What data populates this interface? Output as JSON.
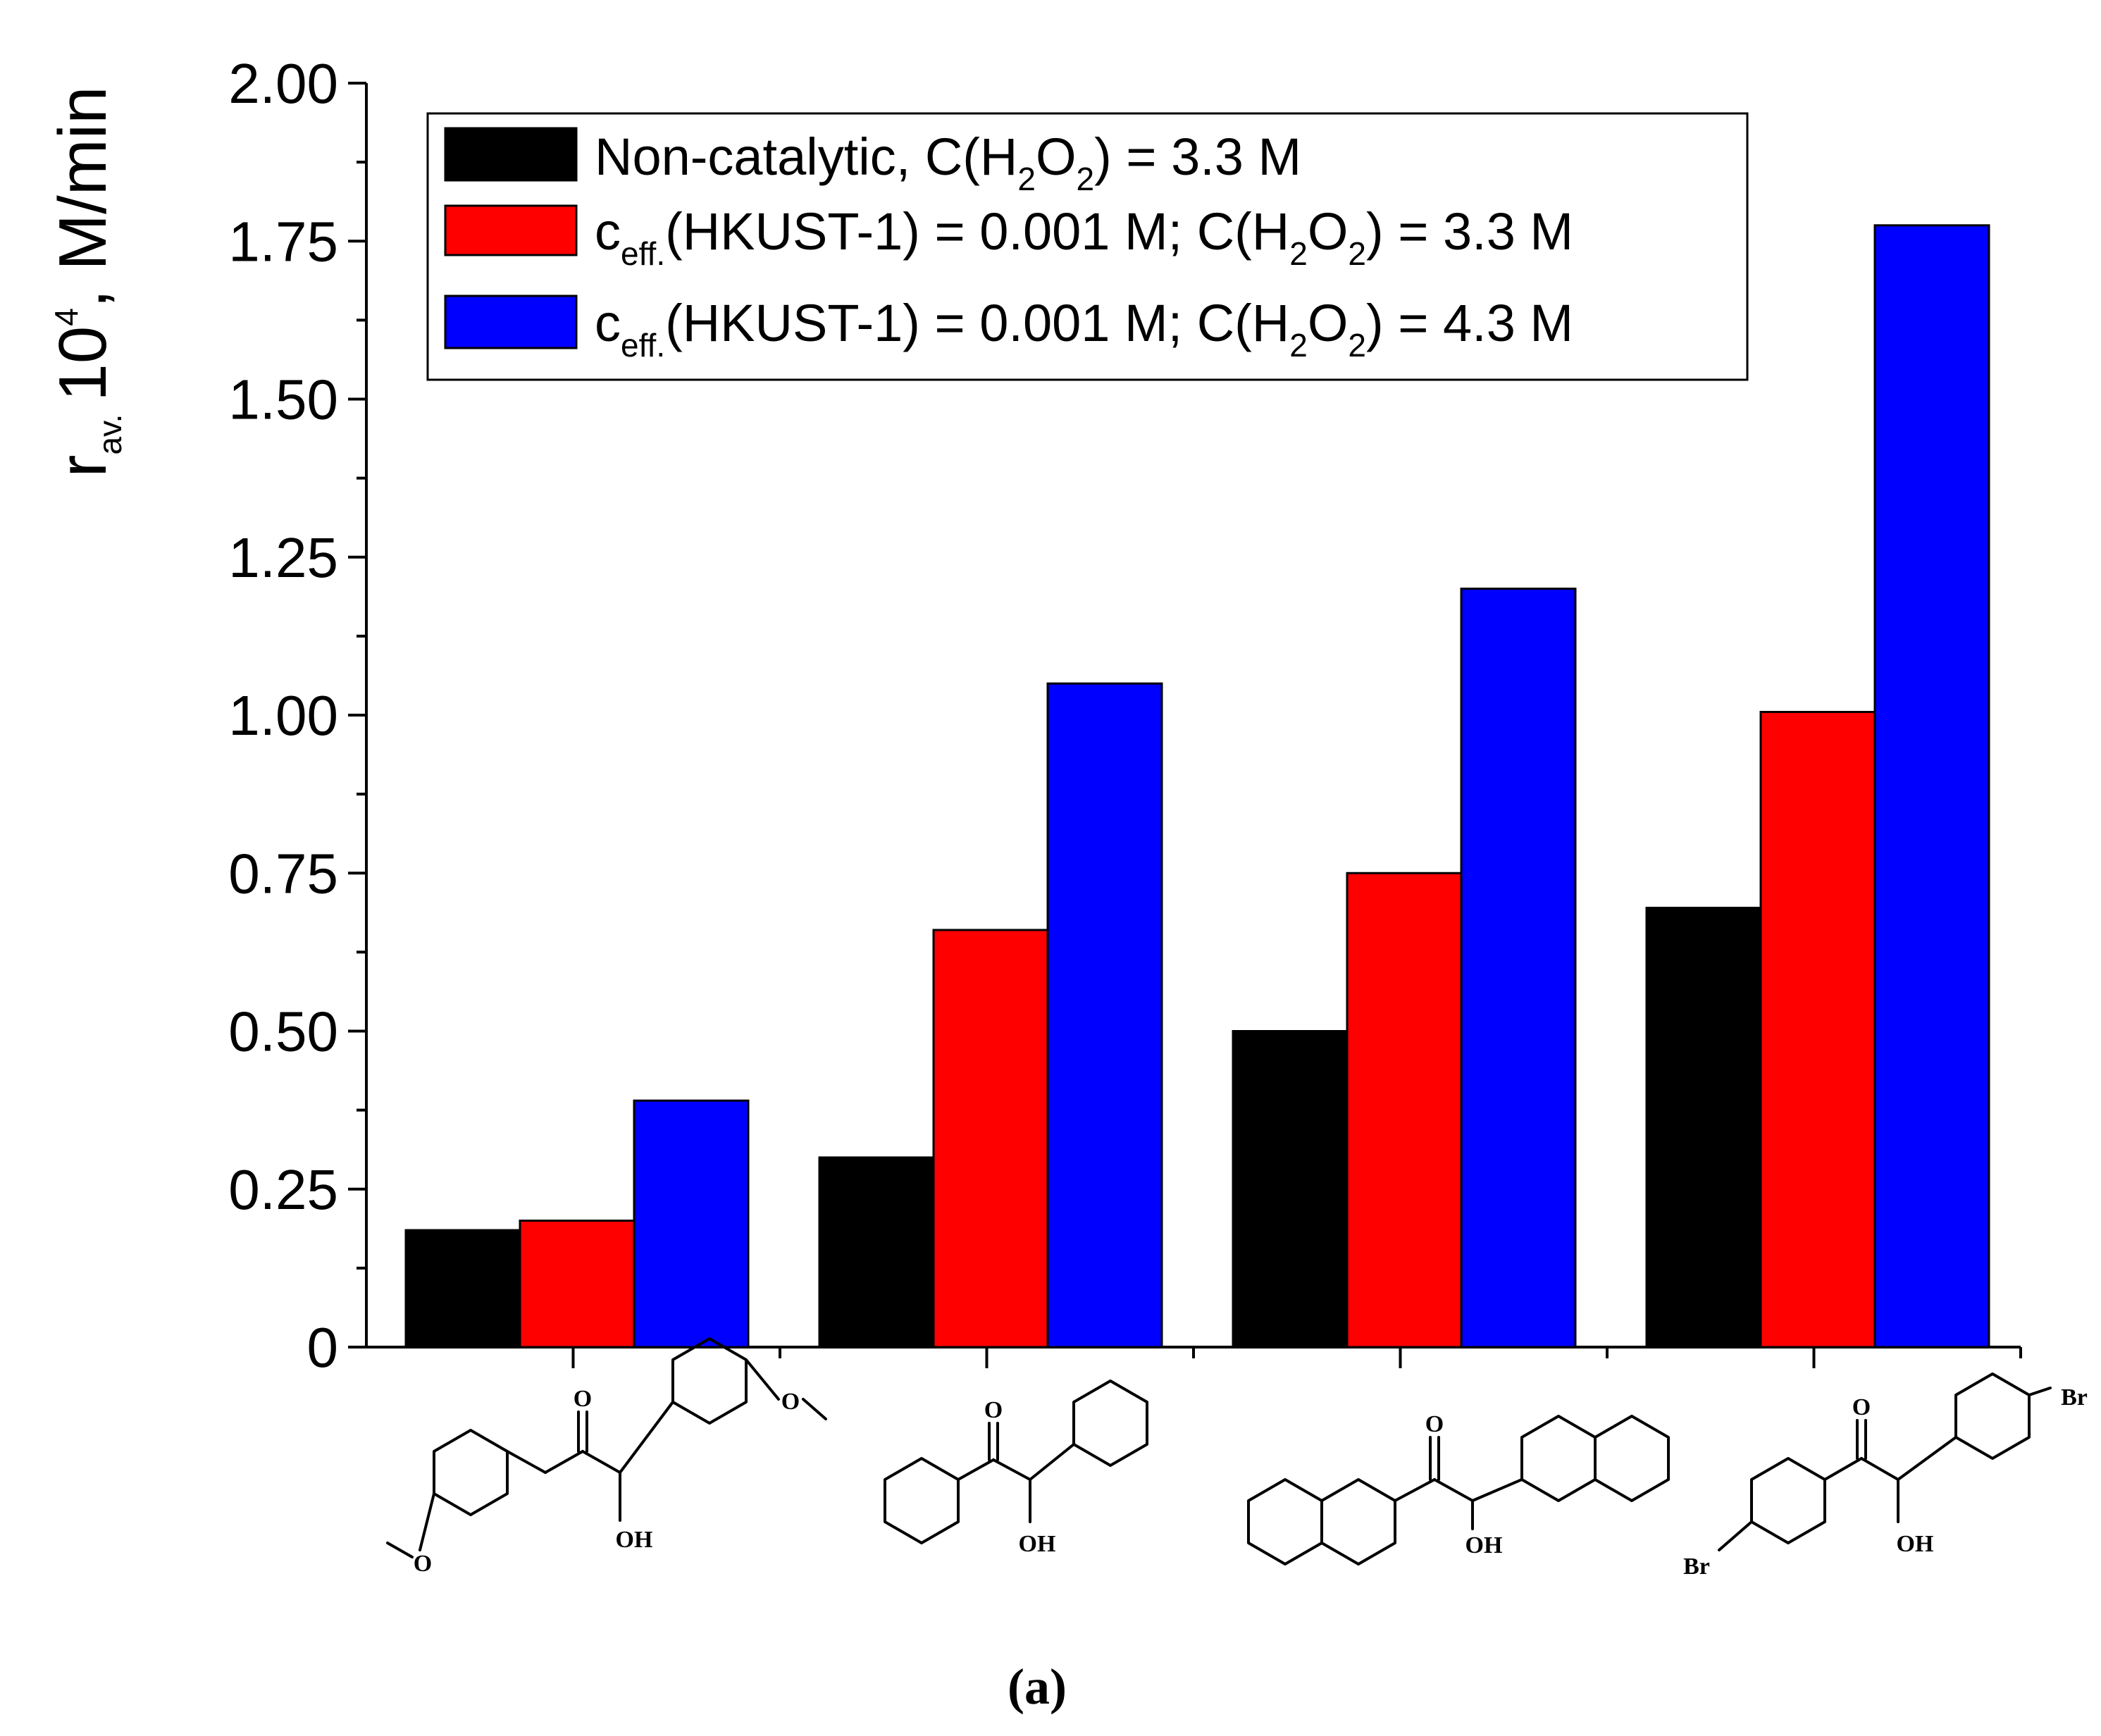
{
  "chart_data": {
    "type": "bar",
    "title": "",
    "xlabel": "",
    "ylabel": {
      "main": "r",
      "subscript": "av.",
      "base": "10",
      "exponent": "4",
      "suffix": ", M/min"
    },
    "ylim": [
      0,
      2.0
    ],
    "yticks": [
      "0",
      "0.25",
      "0.50",
      "0.75",
      "1.00",
      "1.25",
      "1.50",
      "1.75",
      "2.00"
    ],
    "ytick_values": [
      0,
      0.25,
      0.5,
      0.75,
      1.0,
      1.25,
      1.5,
      1.75,
      2.0
    ],
    "categories": [
      "4,4'-dimethoxybenzoin",
      "benzoin",
      "2,2'-naphthoin",
      "4,4'-dibromobenzoin"
    ],
    "series": [
      {
        "name": "Non-catalytic, C(H2O2) = 3.3 M",
        "legend": {
          "pre": "Non-catalytic, C(H",
          "s1": "2",
          "mid": "O",
          "s2": "2",
          "post": ") = 3.3 M"
        },
        "color": "#000000",
        "values": [
          0.185,
          0.3,
          0.5,
          0.695
        ]
      },
      {
        "name": "ceff.(HKUST-1) = 0.001 M; C(H2O2) = 3.3 M",
        "legend": {
          "c": "c",
          "csub": "eff.",
          "pre": "(HKUST-1) = 0.001 M; C(H",
          "s1": "2",
          "mid": "O",
          "s2": "2",
          "post": ") = 3.3 M"
        },
        "color": "#ff0000",
        "values": [
          0.2,
          0.66,
          0.75,
          1.005
        ]
      },
      {
        "name": "ceff.(HKUST-1) = 0.001 M; C(H2O2) = 4.3 M",
        "legend": {
          "c": "c",
          "csub": "eff.",
          "pre": "(HKUST-1) = 0.001 M; C(H",
          "s1": "2",
          "mid": "O",
          "s2": "2",
          "post": ") = 4.3 M"
        },
        "color": "#0000ff",
        "values": [
          0.39,
          1.05,
          1.2,
          1.775
        ]
      }
    ],
    "legend_position": "top",
    "grid": false,
    "atom_labels": {
      "oxygen": "O",
      "hydroxyl": "OH",
      "bromine": "Br"
    }
  },
  "caption": "(a)"
}
